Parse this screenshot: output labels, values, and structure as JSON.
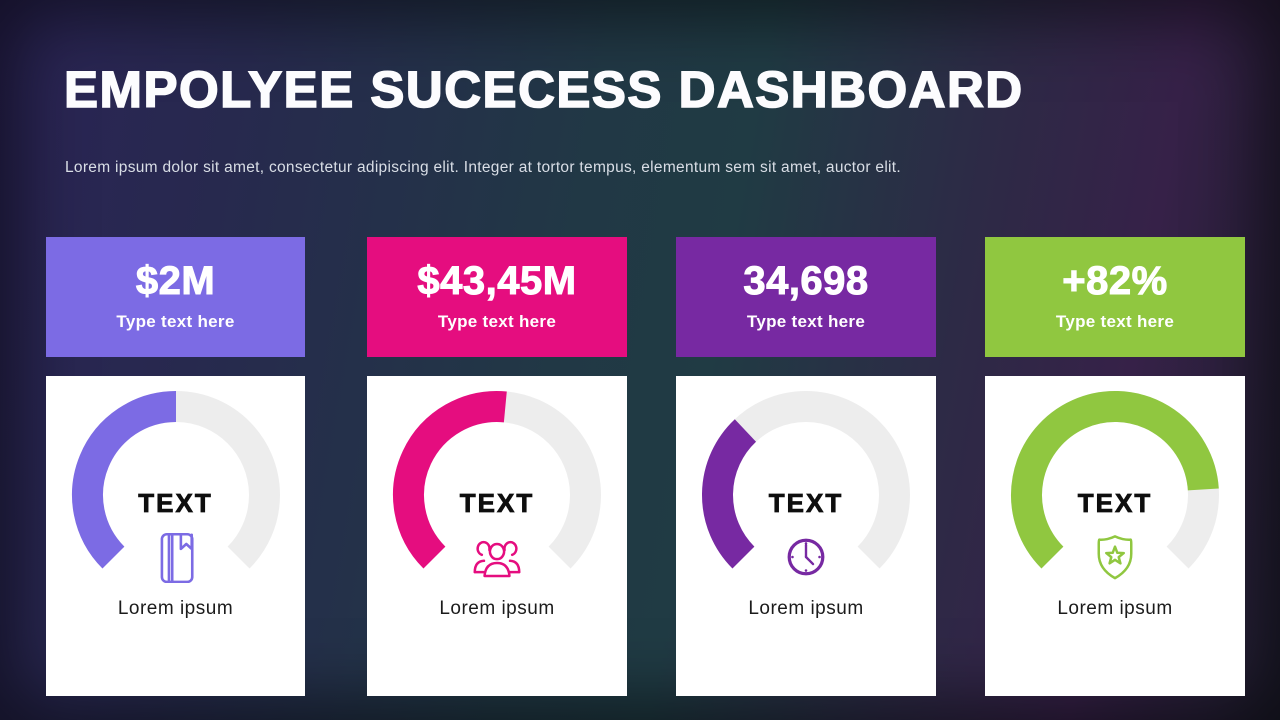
{
  "slide": {
    "title": "EMPOLYEE SUCECESS DASHBOARD",
    "subtitle": "Lorem ipsum dolor sit amet, consectetur adipiscing elit. Integer at tortor tempus, elementum sem sit amet, auctor elit.",
    "background_colors": [
      "#2B2456",
      "#203B44",
      "#362148",
      "#201F30"
    ],
    "panel_background": "#FFFFFF"
  },
  "chart_data": {
    "type": "gauge",
    "arc_span_deg": 270,
    "track_color": "#EDEDED",
    "legend_position": "none",
    "gauges": [
      {
        "kpi": "$2M",
        "kpi_label": "Type text here",
        "percent": 50,
        "color": "#7C6BE4",
        "panel_title": "TEXT",
        "icon": "notebook-icon",
        "caption": "Lorem ipsum"
      },
      {
        "kpi": "$43,45M",
        "kpi_label": "Type text here",
        "percent": 52,
        "color": "#E50D7F",
        "panel_title": "TEXT",
        "icon": "team-icon",
        "caption": "Lorem ipsum"
      },
      {
        "kpi": "34,698",
        "kpi_label": "Type text here",
        "percent": 34,
        "color": "#7729A2",
        "panel_title": "TEXT",
        "icon": "clock-icon",
        "caption": "Lorem ipsum"
      },
      {
        "kpi": "+82%",
        "kpi_label": "Type text here",
        "percent": 82,
        "color": "#90C740",
        "panel_title": "TEXT",
        "icon": "shield-star-icon",
        "caption": "Lorem ipsum"
      }
    ]
  }
}
